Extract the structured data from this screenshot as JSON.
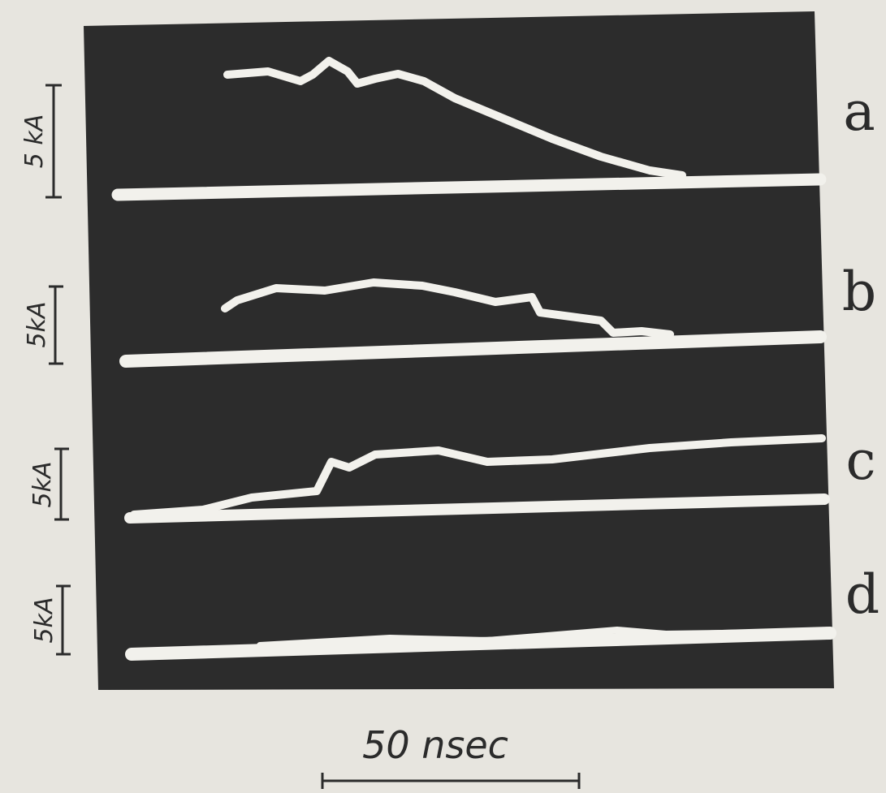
{
  "panels": [
    {
      "label": "a",
      "scale": "5 kA"
    },
    {
      "label": "b",
      "scale": "5kA"
    },
    {
      "label": "c",
      "scale": "5kA"
    },
    {
      "label": "d",
      "scale": "5kA"
    }
  ],
  "time_scale": "50 nsec"
}
